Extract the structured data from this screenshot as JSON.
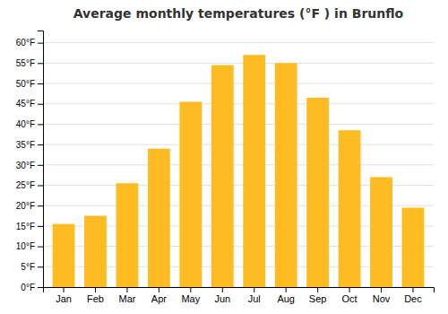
{
  "chart_data": {
    "type": "bar",
    "title": "Average monthly temperatures (°F ) in Brunflo",
    "categories": [
      "Jan",
      "Feb",
      "Mar",
      "Apr",
      "May",
      "Jun",
      "Jul",
      "Aug",
      "Sep",
      "Oct",
      "Nov",
      "Dec"
    ],
    "values": [
      15.5,
      17.5,
      25.5,
      34.0,
      45.5,
      54.5,
      57.0,
      55.0,
      46.5,
      38.5,
      27.0,
      19.5
    ],
    "color": "#FFBB22",
    "ylim": [
      0,
      63
    ],
    "yticks": [
      {
        "value": 0,
        "label": "0°F"
      },
      {
        "value": 5,
        "label": "5°F"
      },
      {
        "value": 10,
        "label": "10°F"
      },
      {
        "value": 15,
        "label": "15°F"
      },
      {
        "value": 20,
        "label": "20°F"
      },
      {
        "value": 25,
        "label": "25°F"
      },
      {
        "value": 30,
        "label": "30°F"
      },
      {
        "value": 35,
        "label": "35°F"
      },
      {
        "value": 40,
        "label": "40°F"
      },
      {
        "value": 45,
        "label": "45°F"
      },
      {
        "value": 50,
        "label": "50°F"
      },
      {
        "value": 55,
        "label": "55°F"
      },
      {
        "value": 60,
        "label": "60°F"
      }
    ],
    "grid": true
  }
}
